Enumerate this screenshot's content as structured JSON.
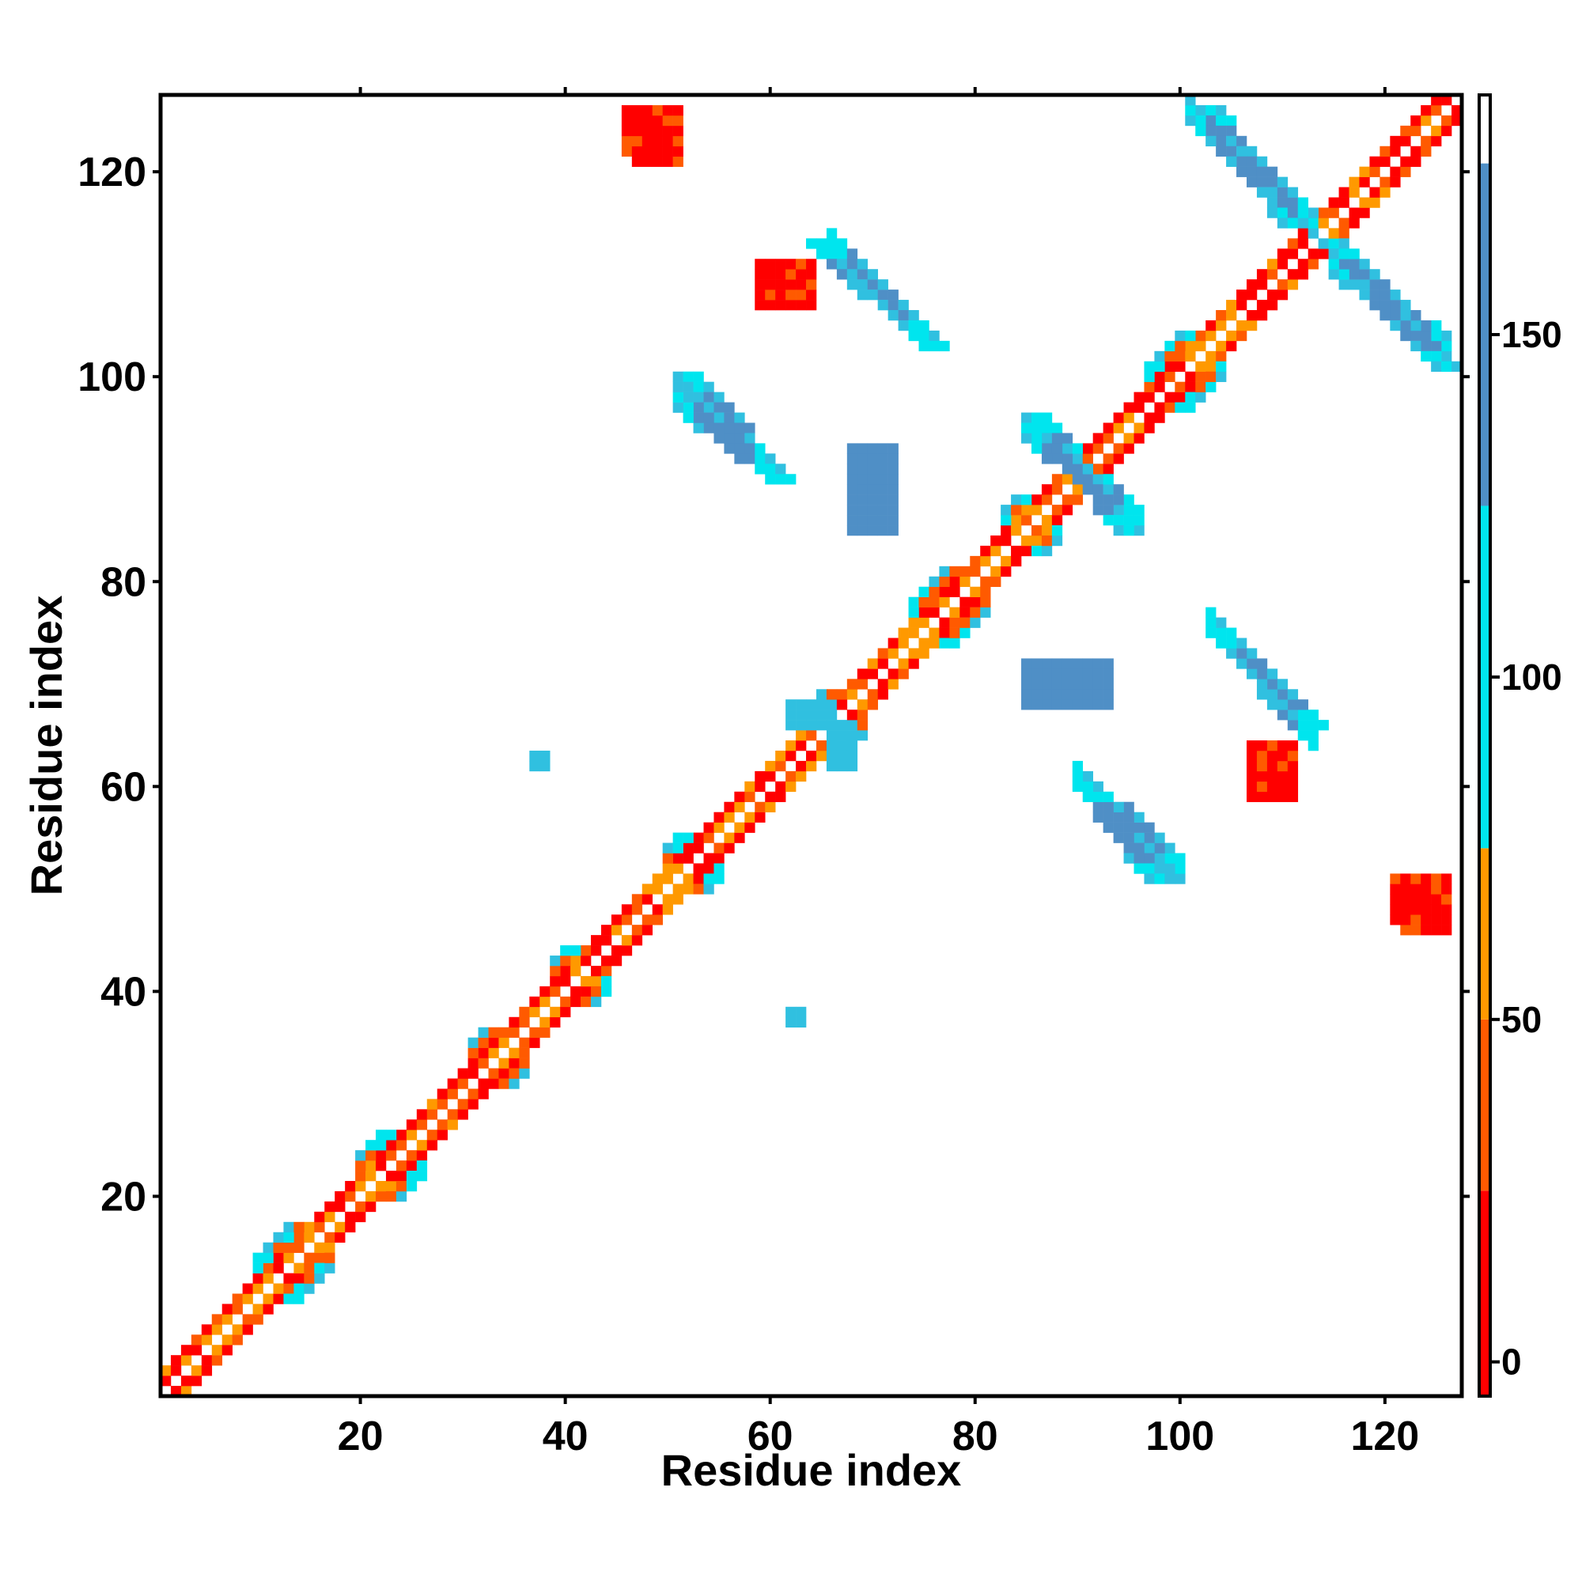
{
  "chart_data": {
    "type": "heatmap",
    "title": "",
    "xlabel": "Residue index",
    "ylabel": "Residue index",
    "xlim": [
      1,
      127
    ],
    "ylim": [
      1,
      127
    ],
    "x_ticks": [
      20,
      40,
      60,
      80,
      100,
      120
    ],
    "y_ticks": [
      20,
      40,
      60,
      80,
      100,
      120
    ],
    "grid": false,
    "legend": "colorbar-right",
    "colorbar": {
      "range": [
        -5,
        185
      ],
      "ticks": [
        0,
        50,
        100,
        150
      ],
      "bands": [
        {
          "from": -5,
          "to": 25,
          "color": "#ff0000"
        },
        {
          "from": 25,
          "to": 50,
          "color": "#ff5a00"
        },
        {
          "from": 50,
          "to": 75,
          "color": "#ff9900"
        },
        {
          "from": 75,
          "to": 125,
          "color": "#00e5ee"
        },
        {
          "from": 125,
          "to": 175,
          "color": "#4f8fc6"
        },
        {
          "from": 175,
          "to": 185,
          "color": "#ffffff"
        }
      ]
    },
    "colors": {
      "red": "#ff0000",
      "red_orange": "#ff5a00",
      "orange": "#ff9900",
      "cyan": "#00e5ee",
      "light_blue": "#30c0e0",
      "steel_blue": "#4f8fc6"
    },
    "diagonal": {
      "from": 1,
      "to": 127,
      "offset1_colors": [
        "red",
        "red_orange",
        "orange"
      ]
    },
    "helix_regions": [
      [
        10,
        17
      ],
      [
        20,
        26
      ],
      [
        31,
        36
      ],
      [
        39,
        44
      ],
      [
        50,
        55
      ],
      [
        64,
        69
      ],
      [
        74,
        81
      ],
      [
        83,
        88
      ],
      [
        89,
        93
      ],
      [
        97,
        104
      ]
    ],
    "strand_pairs": [
      {
        "x": [
          52,
          61
        ],
        "y": [
          100,
          90
        ],
        "color": "steel_blue"
      },
      {
        "x": [
          65,
          76
        ],
        "y": [
          113,
          103
        ],
        "color": "steel_blue"
      },
      {
        "x": [
          91,
          98
        ],
        "y": [
          60,
          51
        ],
        "color": "steel_blue"
      },
      {
        "x": [
          104,
          113
        ],
        "y": [
          75,
          66
        ],
        "color": "steel_blue"
      },
      {
        "x": [
          103,
          111
        ],
        "y": [
          126,
          115
        ],
        "color": "steel_blue"
      },
      {
        "x": [
          115,
          126
        ],
        "y": [
          113,
          101
        ],
        "color": "steel_blue"
      },
      {
        "x": [
          86,
          95
        ],
        "y": [
          96,
          85
        ],
        "color": "steel_blue"
      }
    ],
    "blobs": [
      {
        "x": [
          46,
          50
        ],
        "y": [
          126,
          122
        ],
        "color": "red"
      },
      {
        "x": [
          59,
          63
        ],
        "y": [
          111,
          107
        ],
        "color": "red"
      },
      {
        "x": [
          69,
          72
        ],
        "y": [
          93,
          90
        ],
        "color": "red"
      },
      {
        "x": [
          87,
          93
        ],
        "y": [
          72,
          68
        ],
        "color": "steel_blue"
      },
      {
        "x": [
          107,
          111
        ],
        "y": [
          64,
          60
        ],
        "color": "red"
      },
      {
        "x": [
          121,
          126
        ],
        "y": [
          51,
          47
        ],
        "color": "red"
      },
      {
        "x": [
          68,
          72
        ],
        "y": [
          89,
          85
        ],
        "color": "steel_blue"
      },
      {
        "x": [
          37,
          38
        ],
        "y": [
          63,
          62
        ],
        "color": "light_blue"
      },
      {
        "x": [
          62,
          63
        ],
        "y": [
          38,
          37
        ],
        "color": "light_blue"
      },
      {
        "x": [
          62,
          66
        ],
        "y": [
          68,
          66
        ],
        "color": "light_blue"
      },
      {
        "x": [
          66,
          68
        ],
        "y": [
          64,
          62
        ],
        "color": "light_blue"
      }
    ]
  }
}
